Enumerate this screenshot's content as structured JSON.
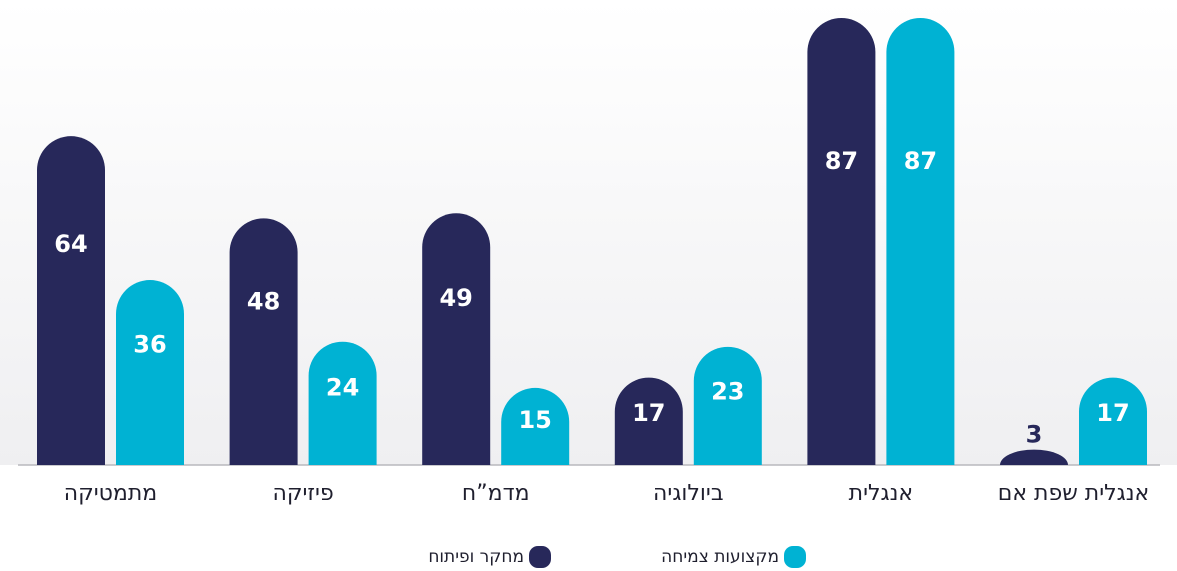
{
  "chart_data": {
    "type": "bar",
    "categories": [
      "מתמטיקה",
      "פיזיקה",
      "מדמ”ח",
      "ביולוגיה",
      "אנגלית",
      "אנגלית שפת אם"
    ],
    "series": [
      {
        "name": "מחקר ופיתוח",
        "color": "#27285a",
        "values": [
          64,
          48,
          49,
          17,
          87,
          3
        ]
      },
      {
        "name": "מקצועות צמיחה",
        "color": "#00b2d3",
        "values": [
          36,
          24,
          15,
          23,
          87,
          17
        ]
      }
    ]
  }
}
